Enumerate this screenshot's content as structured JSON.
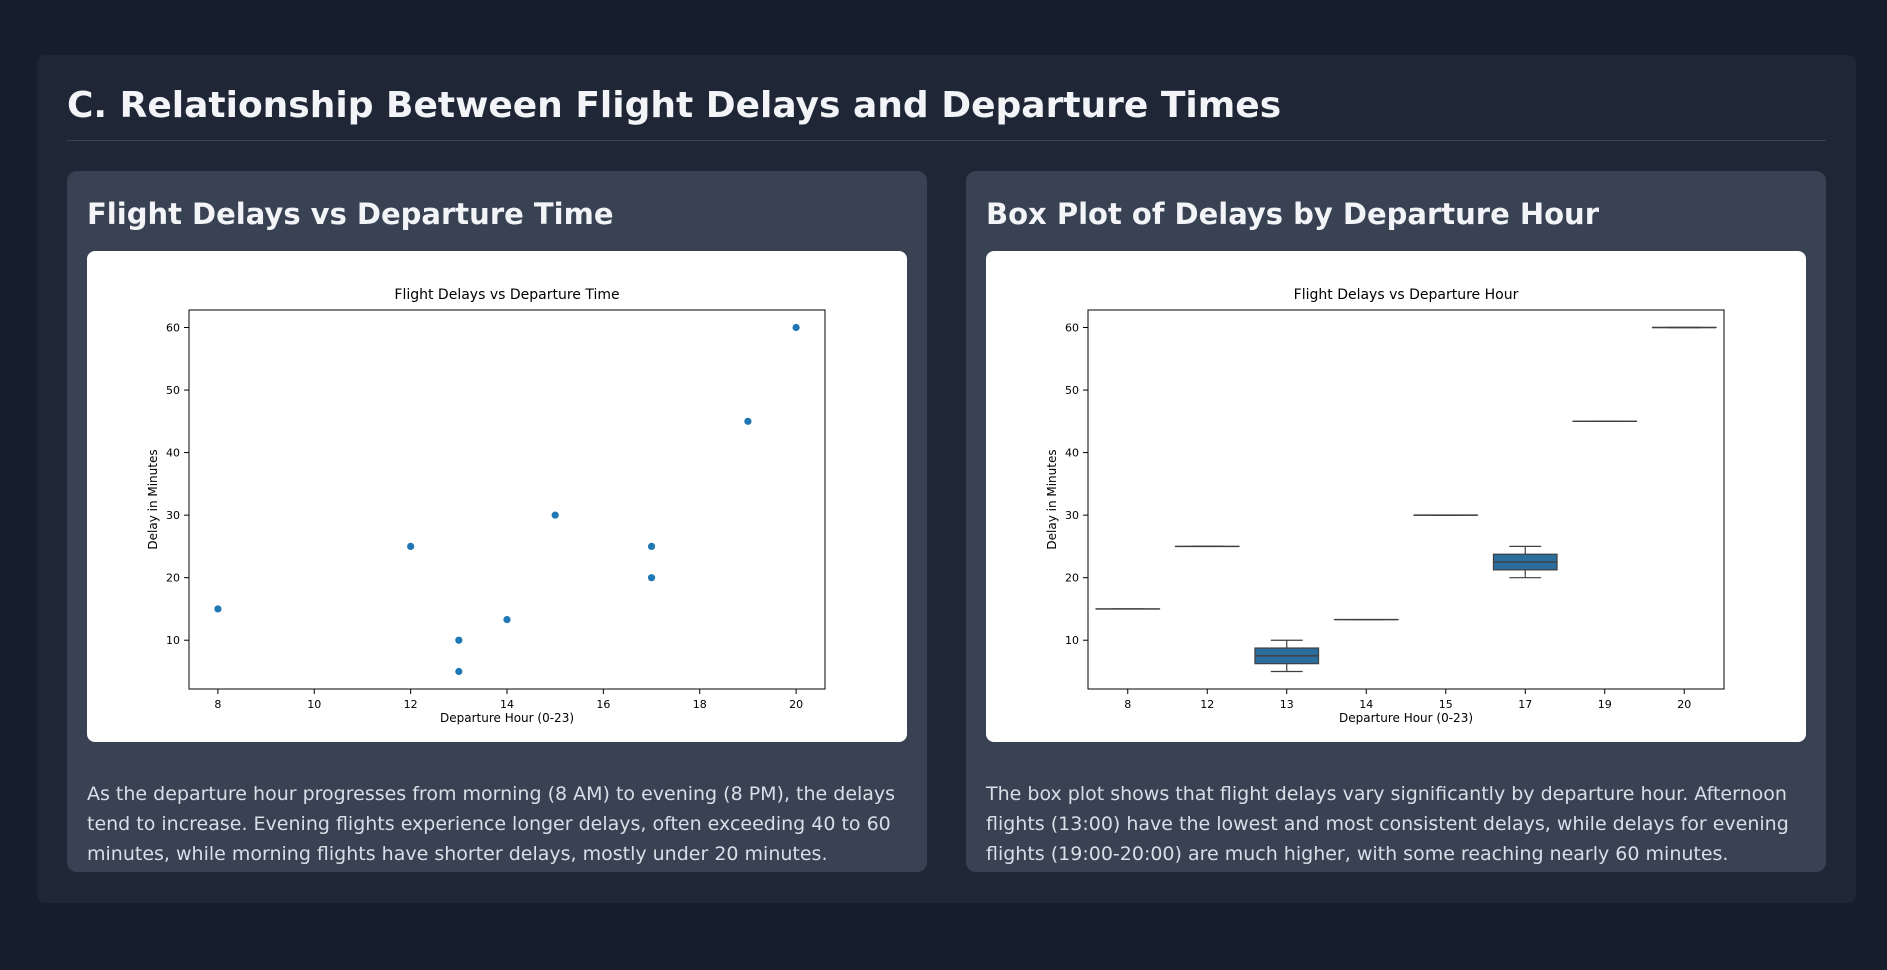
{
  "page": {
    "title": "C. Relationship Between Flight Delays and Departure Times"
  },
  "cards": [
    {
      "title": "Flight Delays vs Departure Time",
      "caption": "As the departure hour progresses from morning (8 AM) to evening (8 PM), the delays tend to increase. Evening flights experience longer delays, often exceeding 40 to 60 minutes, while morning flights have shorter delays, mostly under 20 minutes."
    },
    {
      "title": "Box Plot of Delays by Departure Hour",
      "caption": "The box plot shows that flight delays vary significantly by departure hour. Afternoon flights (13:00) have the lowest and most consistent delays, while delays for evening flights (19:00-20:00) are much higher, with some reaching nearly 60 minutes."
    }
  ],
  "colors": {
    "point": "#1f77b4",
    "box": "#2b6e9e"
  },
  "chart_data": [
    {
      "type": "scatter",
      "title": "Flight Delays vs Departure Time",
      "xlabel": "Departure Hour (0-23)",
      "ylabel": "Delay in Minutes",
      "xlim": [
        7.4,
        20.6
      ],
      "ylim": [
        2.2,
        62.8
      ],
      "xticks": [
        8,
        10,
        12,
        14,
        16,
        18,
        20
      ],
      "yticks": [
        10,
        20,
        30,
        40,
        50,
        60
      ],
      "points": [
        {
          "x": 8,
          "y": 15
        },
        {
          "x": 12,
          "y": 25
        },
        {
          "x": 13,
          "y": 10
        },
        {
          "x": 13,
          "y": 5
        },
        {
          "x": 14,
          "y": 13.3
        },
        {
          "x": 15,
          "y": 30
        },
        {
          "x": 17,
          "y": 25
        },
        {
          "x": 17,
          "y": 20
        },
        {
          "x": 19,
          "y": 45
        },
        {
          "x": 20,
          "y": 60
        }
      ]
    },
    {
      "type": "box",
      "title": "Flight Delays vs Departure Hour",
      "xlabel": "Departure Hour (0-23)",
      "ylabel": "Delay in Minutes",
      "ylim": [
        2.2,
        62.8
      ],
      "yticks": [
        10,
        20,
        30,
        40,
        50,
        60
      ],
      "categories": [
        "8",
        "12",
        "13",
        "14",
        "15",
        "17",
        "19",
        "20"
      ],
      "boxes": [
        {
          "min": 15,
          "q1": 15,
          "median": 15,
          "q3": 15,
          "max": 15
        },
        {
          "min": 25,
          "q1": 25,
          "median": 25,
          "q3": 25,
          "max": 25
        },
        {
          "min": 5,
          "q1": 6.25,
          "median": 7.5,
          "q3": 8.75,
          "max": 10
        },
        {
          "min": 13.3,
          "q1": 13.3,
          "median": 13.3,
          "q3": 13.3,
          "max": 13.3
        },
        {
          "min": 30,
          "q1": 30,
          "median": 30,
          "q3": 30,
          "max": 30
        },
        {
          "min": 20,
          "q1": 21.25,
          "median": 22.5,
          "q3": 23.75,
          "max": 25
        },
        {
          "min": 45,
          "q1": 45,
          "median": 45,
          "q3": 45,
          "max": 45
        },
        {
          "min": 60,
          "q1": 60,
          "median": 60,
          "q3": 60,
          "max": 60
        }
      ]
    }
  ]
}
